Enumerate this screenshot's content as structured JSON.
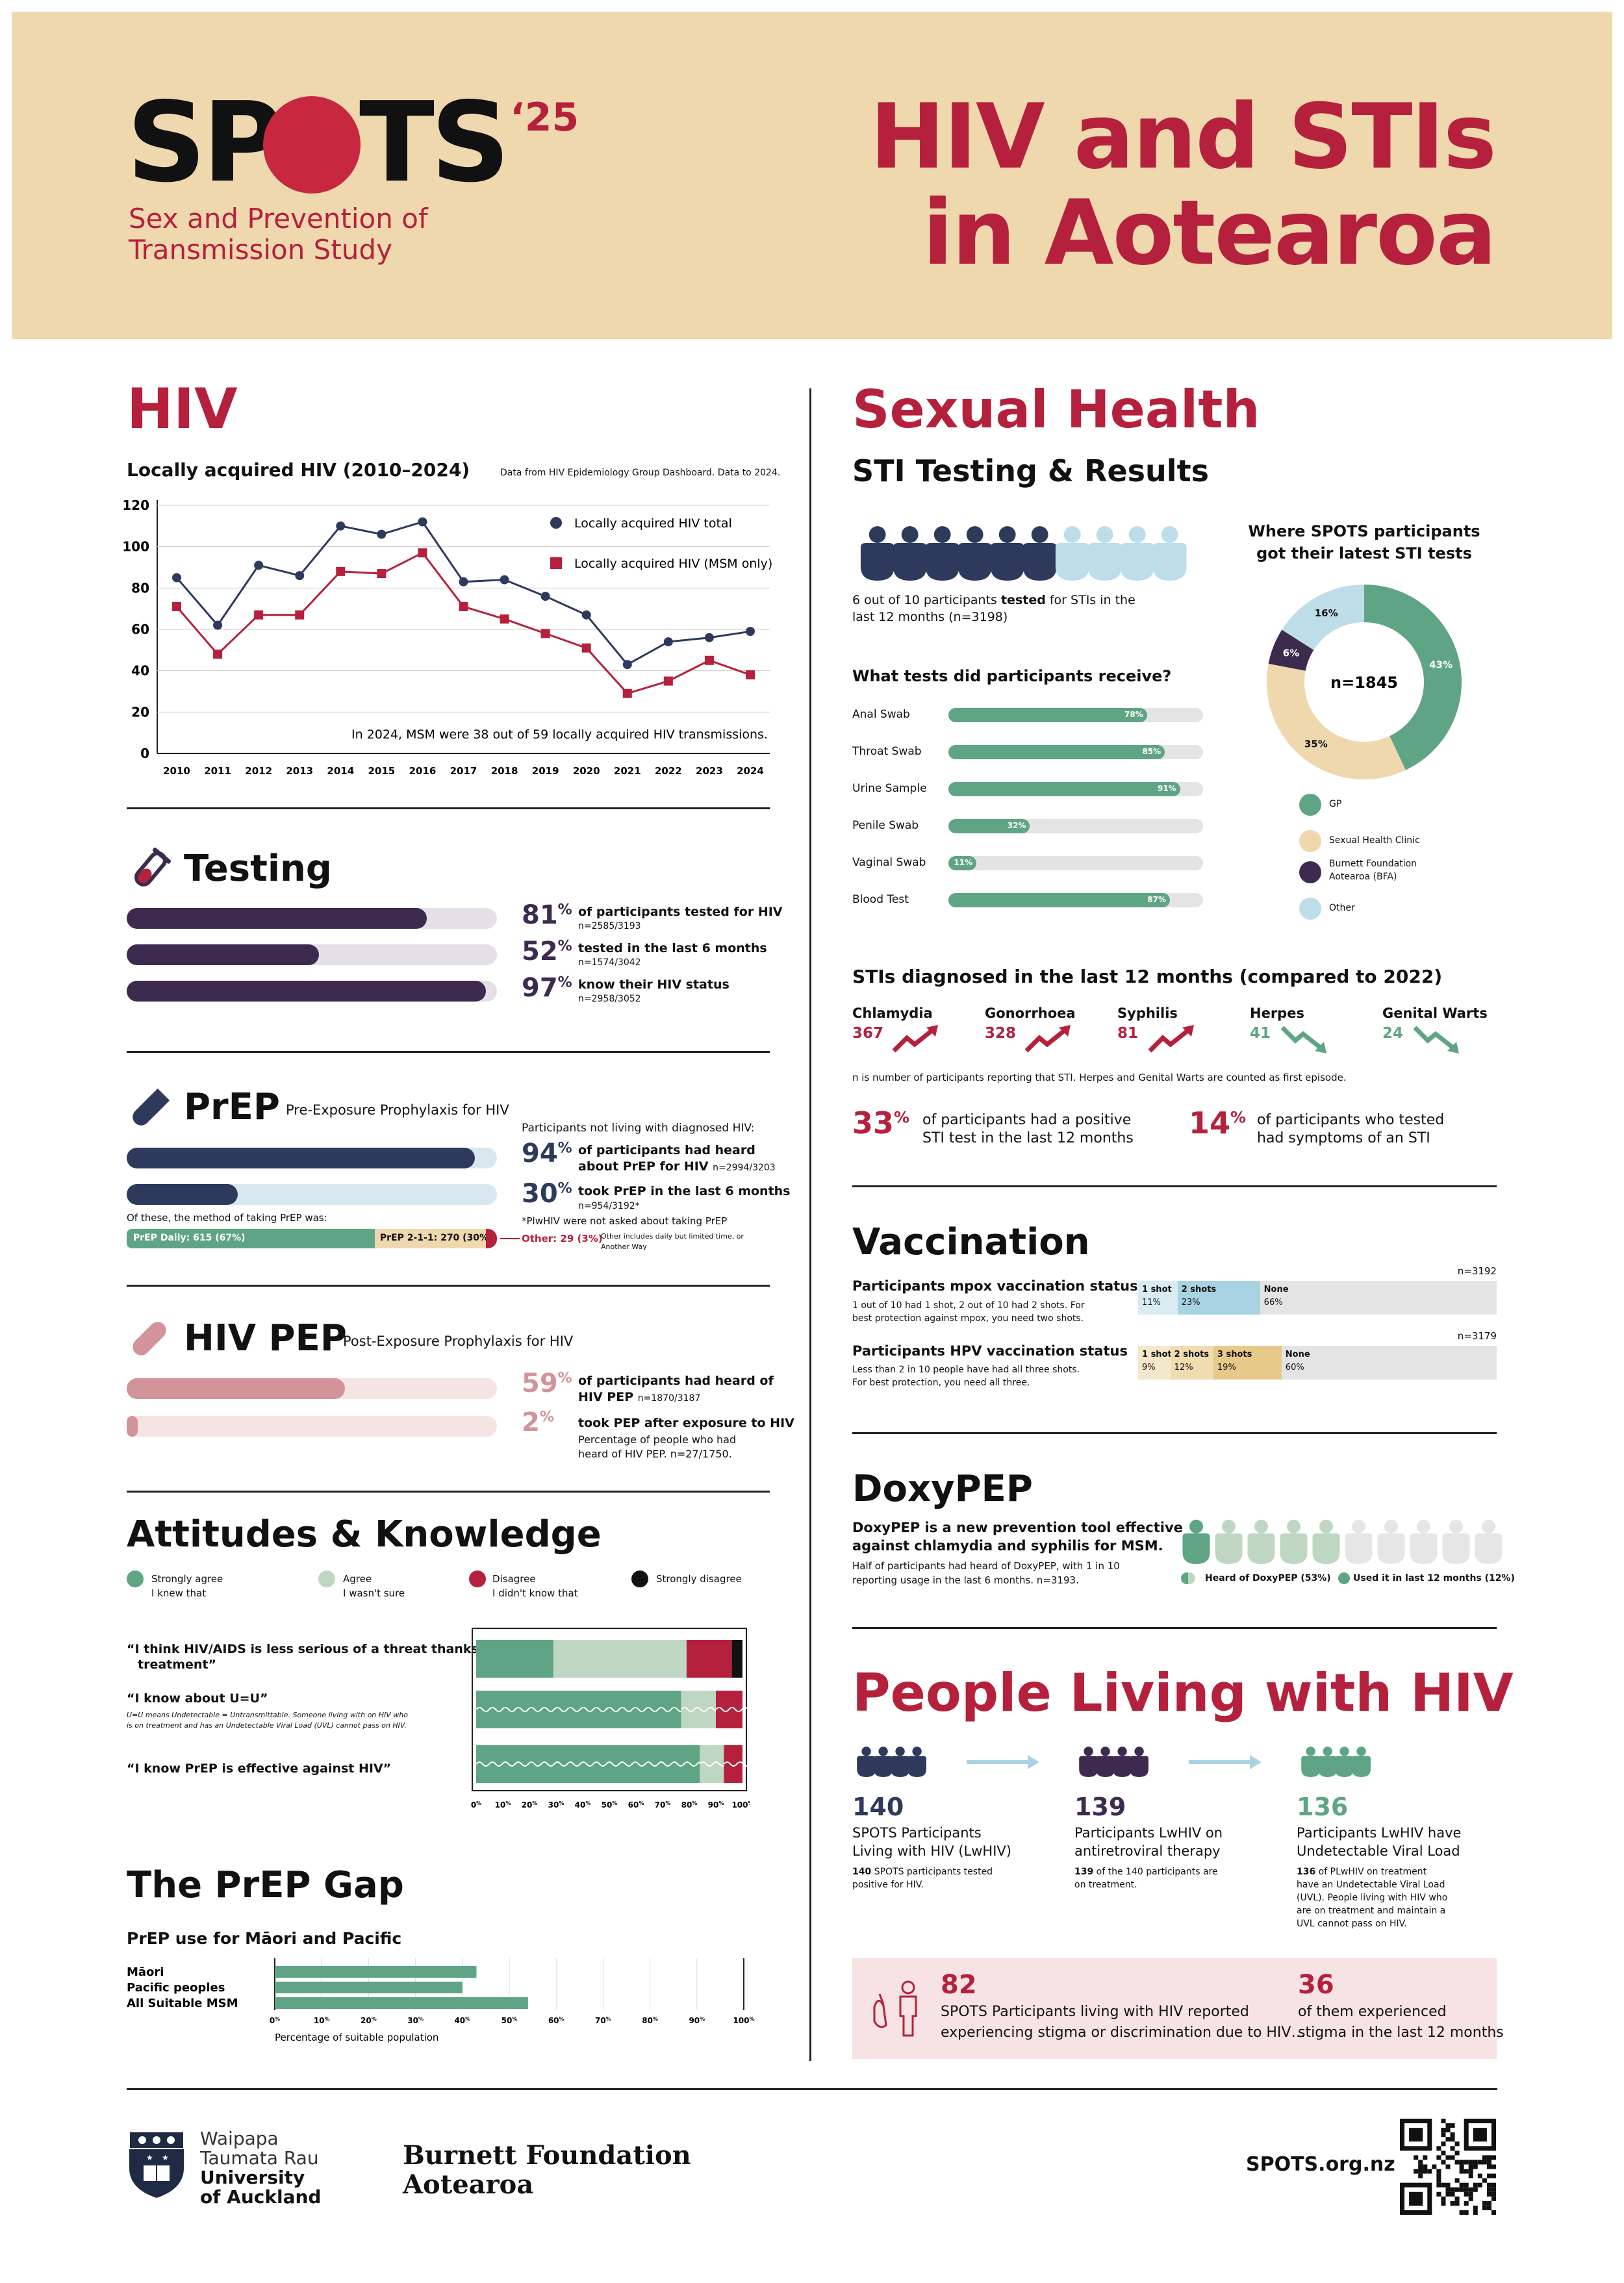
{
  "header": {
    "logo_main_1": "SP",
    "logo_main_2": "TS",
    "logo_year": "‘25",
    "logo_sub_1": "Sex and Prevention of",
    "logo_sub_2": "Transmission Study",
    "title_1": "HIV and STIs",
    "title_2": "in Aotearoa"
  },
  "hiv": {
    "heading": "HIV",
    "chart_title": "Locally acquired HIV (2010–2024)",
    "source": "Data from HIV Epidemiology Group Dashboard. Data to 2024.",
    "legend_total": "Locally acquired HIV total",
    "legend_msm": "Locally acquired HIV (MSM only)",
    "note": "In 2024, MSM were 38 out of 59 locally acquired HIV transmissions."
  },
  "chart_data": {
    "type": "line",
    "x": [
      "2010",
      "2011",
      "2012",
      "2013",
      "2014",
      "2015",
      "2016",
      "2017",
      "2018",
      "2019",
      "2020",
      "2021",
      "2022",
      "2023",
      "2024"
    ],
    "series": [
      {
        "name": "Locally acquired HIV total",
        "values": [
          85,
          62,
          91,
          86,
          110,
          106,
          112,
          83,
          84,
          76,
          67,
          43,
          54,
          56,
          59
        ]
      },
      {
        "name": "Locally acquired HIV (MSM only)",
        "values": [
          71,
          48,
          67,
          67,
          88,
          87,
          97,
          71,
          65,
          58,
          51,
          29,
          35,
          45,
          38
        ]
      }
    ],
    "ylim": [
      0,
      120
    ],
    "yticks": [
      "0",
      "20",
      "40",
      "60",
      "80",
      "100",
      "120"
    ],
    "colors": {
      "total": "#2e3a5c",
      "msm": "#b5213d"
    }
  },
  "testing": {
    "heading": "Testing",
    "items": [
      {
        "pct": "81",
        "sup": "%",
        "label": "of participants tested for HIV",
        "sub": "n=2585/3193",
        "value": 81
      },
      {
        "pct": "52",
        "sup": "%",
        "label": "tested in the last 6 months",
        "sub": "n=1574/3042",
        "value": 52
      },
      {
        "pct": "97",
        "sup": "%",
        "label": "know their HIV status",
        "sub": "n=2958/3052",
        "value": 97
      }
    ]
  },
  "prep": {
    "heading": "PrEP",
    "subheading": "Pre-Exposure Prophylaxis for HIV",
    "intro": "Participants not living with diagnosed HIV:",
    "i1_pct": "94",
    "i1_label_1": "of participants had heard",
    "i1_label_2": "about PrEP for HIV",
    "i1_sub": "n=2994/3203",
    "i1_value": 94,
    "i2_pct": "30",
    "i2_label": "took PrEP in the last 6 months",
    "i2_sub": "n=954/3192*",
    "i2_value": 30,
    "footnote": "*PlwHIV were not asked about taking PrEP",
    "method_label": "Of these, the method of taking PrEP was:",
    "daily": "PrEP Daily: 615 (67%)",
    "daily_value": 67,
    "on_demand": "PrEP 2-1-1: 270 (30%)",
    "on_demand_value": 30,
    "other": "Other: 29 (3%)",
    "other_value": 3,
    "other_note_1": "Other includes daily but limited time, or",
    "other_note_2": "Another Way",
    "sup": "%"
  },
  "pep": {
    "heading": "HIV PEP",
    "subheading": "Post-Exposure Prophylaxis for HIV",
    "i1_pct": "59",
    "i1_label_1": "of participants had heard of",
    "i1_label_2": "HIV PEP",
    "i1_sub": "n=1870/3187",
    "i1_value": 59,
    "i2_pct": "2",
    "i2_label": "took PEP after exposure to HIV",
    "i2_sub_1": "Percentage of people who had",
    "i2_sub_2": "heard of HIV PEP. n=27/1750.",
    "i2_value": 2,
    "sup": "%"
  },
  "attitudes": {
    "heading": "Attitudes & Knowledge",
    "legend": {
      "strongly_agree": "Strongly agree",
      "knew": "I knew that",
      "agree": "Agree",
      "not_sure": "I wasn't sure",
      "disagree": "Disagree",
      "didnt_know": "I didn't know that",
      "strongly_disagree": "Strongly disagree"
    },
    "q1_1": "“I think HIV/AIDS is less serious of a threat thanks to",
    "q1_2": "treatment”",
    "q2": "“I know about U=U”",
    "q2_note_1": "U=U means Undetectable = Untransmittable. Someone living with on HIV who",
    "q2_note_2": "is on treatment and has an Undetectable Viral Load (UVL) cannot pass on HIV.",
    "q3": "“I know PrEP is effective against HIV”",
    "q1_values": [
      29,
      50,
      17,
      4
    ],
    "q2_values": [
      77,
      13,
      10
    ],
    "q3_values": [
      84,
      9,
      7
    ],
    "ticks": [
      "0",
      "10",
      "20",
      "30",
      "40",
      "50",
      "60",
      "70",
      "80",
      "90",
      "100"
    ],
    "tick_sup": "%",
    "colors": {
      "green": "#5fa585",
      "lightgreen": "#bfd7c2",
      "red": "#b5213d",
      "black": "#111111"
    }
  },
  "prep_gap": {
    "heading": "The PrEP Gap",
    "sub": "PrEP use for Māori and Pacific",
    "rows": [
      {
        "label": "Māori",
        "value": 43
      },
      {
        "label": "Pacific peoples",
        "value": 40
      },
      {
        "label": "All Suitable MSM",
        "value": 54
      }
    ],
    "ticks": [
      "0",
      "10",
      "20",
      "30",
      "40",
      "50",
      "60",
      "70",
      "80",
      "90",
      "100"
    ],
    "tick_sup": "%",
    "xlabel": "Percentage of suitable population"
  },
  "sexual_health": {
    "heading": "Sexual Health",
    "sti_heading": "STI Testing & Results",
    "tested_1a": "6 out of 10 participants ",
    "tested_1b": "tested",
    "tested_1c": " for STIs in the",
    "tested_2": "last 12 months (n=3198)",
    "tests_heading": "What tests did participants receive?",
    "tests": [
      {
        "label": "Anal Swab",
        "pct": "78%",
        "value": 78
      },
      {
        "label": "Throat Swab",
        "pct": "85%",
        "value": 85
      },
      {
        "label": "Urine Sample",
        "pct": "91%",
        "value": 91
      },
      {
        "label": "Penile Swab",
        "pct": "32%",
        "value": 32
      },
      {
        "label": "Vaginal Swab",
        "pct": "11%",
        "value": 11
      },
      {
        "label": "Blood Test",
        "pct": "87%",
        "value": 87
      }
    ],
    "where_1": "Where SPOTS participants",
    "where_2": "got their latest STI tests",
    "donut_center": "n=1845",
    "donut": [
      {
        "label": "GP",
        "pct": "43%",
        "value": 43,
        "color": "#5fa585"
      },
      {
        "label": "Sexual Health Clinic",
        "pct": "35%",
        "value": 35,
        "color": "#efd8ae"
      },
      {
        "label": "Burnett Foundation Aotearoa (BFA)",
        "pct": "6%",
        "value": 6,
        "color": "#3d2a4f"
      },
      {
        "label": "Other",
        "pct": "16%",
        "value": 16,
        "color": "#bddde8"
      }
    ],
    "bfa_1": "Burnett Foundation",
    "bfa_2": "Aotearoa (BFA)",
    "diag_heading": "STIs diagnosed in the last 12 months (compared to 2022)",
    "diagnoses": [
      {
        "name": "Chlamydia",
        "n": "367",
        "trend": "up"
      },
      {
        "name": "Gonorrhoea",
        "n": "328",
        "trend": "up"
      },
      {
        "name": "Syphilis",
        "n": "81",
        "trend": "up"
      },
      {
        "name": "Herpes",
        "n": "41",
        "trend": "down"
      },
      {
        "name": "Genital Warts",
        "n": "24",
        "trend": "down"
      }
    ],
    "diag_note": "n is number of participants reporting that STI. Herpes and Genital Warts are counted as first episode.",
    "pos_pct": "33",
    "pos_1": "of participants had a positive",
    "pos_2": "STI test in the last 12 months",
    "sym_pct": "14",
    "sym_1": "of participants who tested",
    "sym_2": "had symptoms of an STI",
    "sup": "%"
  },
  "vaccination": {
    "heading": "Vaccination",
    "mpox_title": "Participants mpox vaccination status",
    "mpox_desc_1": "1 out of 10 had 1 shot, 2 out of 10 had 2 shots. For",
    "mpox_desc_2": "best protection against mpox, you need two shots.",
    "mpox_n": "n=3192",
    "mpox": [
      {
        "label": "1 shot",
        "pct": "11%",
        "value": 11
      },
      {
        "label": "2 shots",
        "pct": "23%",
        "value": 23
      },
      {
        "label": "None",
        "pct": "66%",
        "value": 66
      }
    ],
    "hpv_title": "Participants HPV vaccination status",
    "hpv_desc_1": "Less than 2 in 10 people have had all three shots.",
    "hpv_desc_2": "For best protection, you need all three.",
    "hpv_n": "n=3179",
    "hpv": [
      {
        "label": "1 shot",
        "pct": "9%",
        "value": 9
      },
      {
        "label": "2 shots",
        "pct": "12%",
        "value": 12
      },
      {
        "label": "3 shots",
        "pct": "19%",
        "value": 19
      },
      {
        "label": "None",
        "pct": "60%",
        "value": 60
      }
    ]
  },
  "doxypep": {
    "heading": "DoxyPEP",
    "desc_1": "DoxyPEP is a new prevention tool effective",
    "desc_2": "against chlamydia and syphilis for MSM.",
    "sub_1": "Half of participants had heard of DoxyPEP, with 1 in 10",
    "sub_2": "reporting usage in the last 6 months. n=3193.",
    "legend_heard": "Heard of DoxyPEP (53%)",
    "legend_used": "Used it in last 12 months (12%)"
  },
  "plwh": {
    "heading": "People Living with HIV",
    "steps": [
      {
        "n": "140",
        "t1": "SPOTS Participants",
        "t2": "Living with HIV (LwHIV)",
        "s1b": "140",
        "s1": " SPOTS participants tested",
        "s2": "positive for HIV.",
        "s3": "",
        "s4": "",
        "color": "#2e3a5c"
      },
      {
        "n": "139",
        "t1": "Participants LwHIV on",
        "t2": "antiretroviral therapy",
        "s1b": "139",
        "s1": " of the 140 participants are",
        "s2": "on treatment.",
        "s3": "",
        "s4": "",
        "color": "#3d2a4f"
      },
      {
        "n": "136",
        "t1": "Participants LwHIV have",
        "t2": "Undetectable Viral Load",
        "s1b": "136",
        "s1": " of PLwHIV on treatment",
        "s2": "have an Undetectable Viral Load",
        "s3": "(UVL). People living with HIV who",
        "s4": "are on treatment and maintain a",
        "s5": "UVL cannot pass on HIV.",
        "color": "#5fa585"
      }
    ],
    "stigma_n": "82",
    "stigma_1": "SPOTS Participants living with HIV reported",
    "stigma_2": "experiencing stigma or discrimination due to HIV…",
    "stigma2_n": "36",
    "stigma2_1": "of them experienced",
    "stigma2_2": "stigma in the last 12 months"
  },
  "footer": {
    "uoa_1": "Waipapa",
    "uoa_2": "Taumata Rau",
    "uoa_3": "University",
    "uoa_4": "of Auckland",
    "bfa_1": "Burnett Foundation",
    "bfa_2": "Aotearoa",
    "url": "SPOTS.org.nz"
  }
}
